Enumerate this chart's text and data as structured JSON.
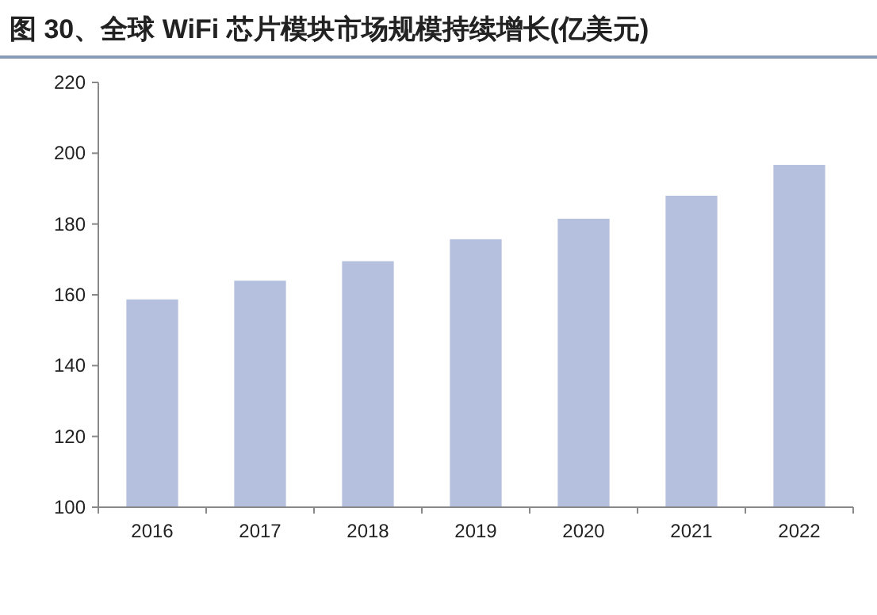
{
  "chart_data": {
    "type": "bar",
    "title": "图 30、全球 WiFi 芯片模块市场规模持续增长(亿美元)",
    "categories": [
      "2016",
      "2017",
      "2018",
      "2019",
      "2020",
      "2021",
      "2022"
    ],
    "values": [
      158.7,
      164,
      169.5,
      175.7,
      181.5,
      188,
      196.7
    ],
    "color": "#b4c0de",
    "ylim": [
      100,
      220
    ],
    "yticks": [
      100,
      120,
      140,
      160,
      180,
      200,
      220
    ],
    "grid": false
  }
}
